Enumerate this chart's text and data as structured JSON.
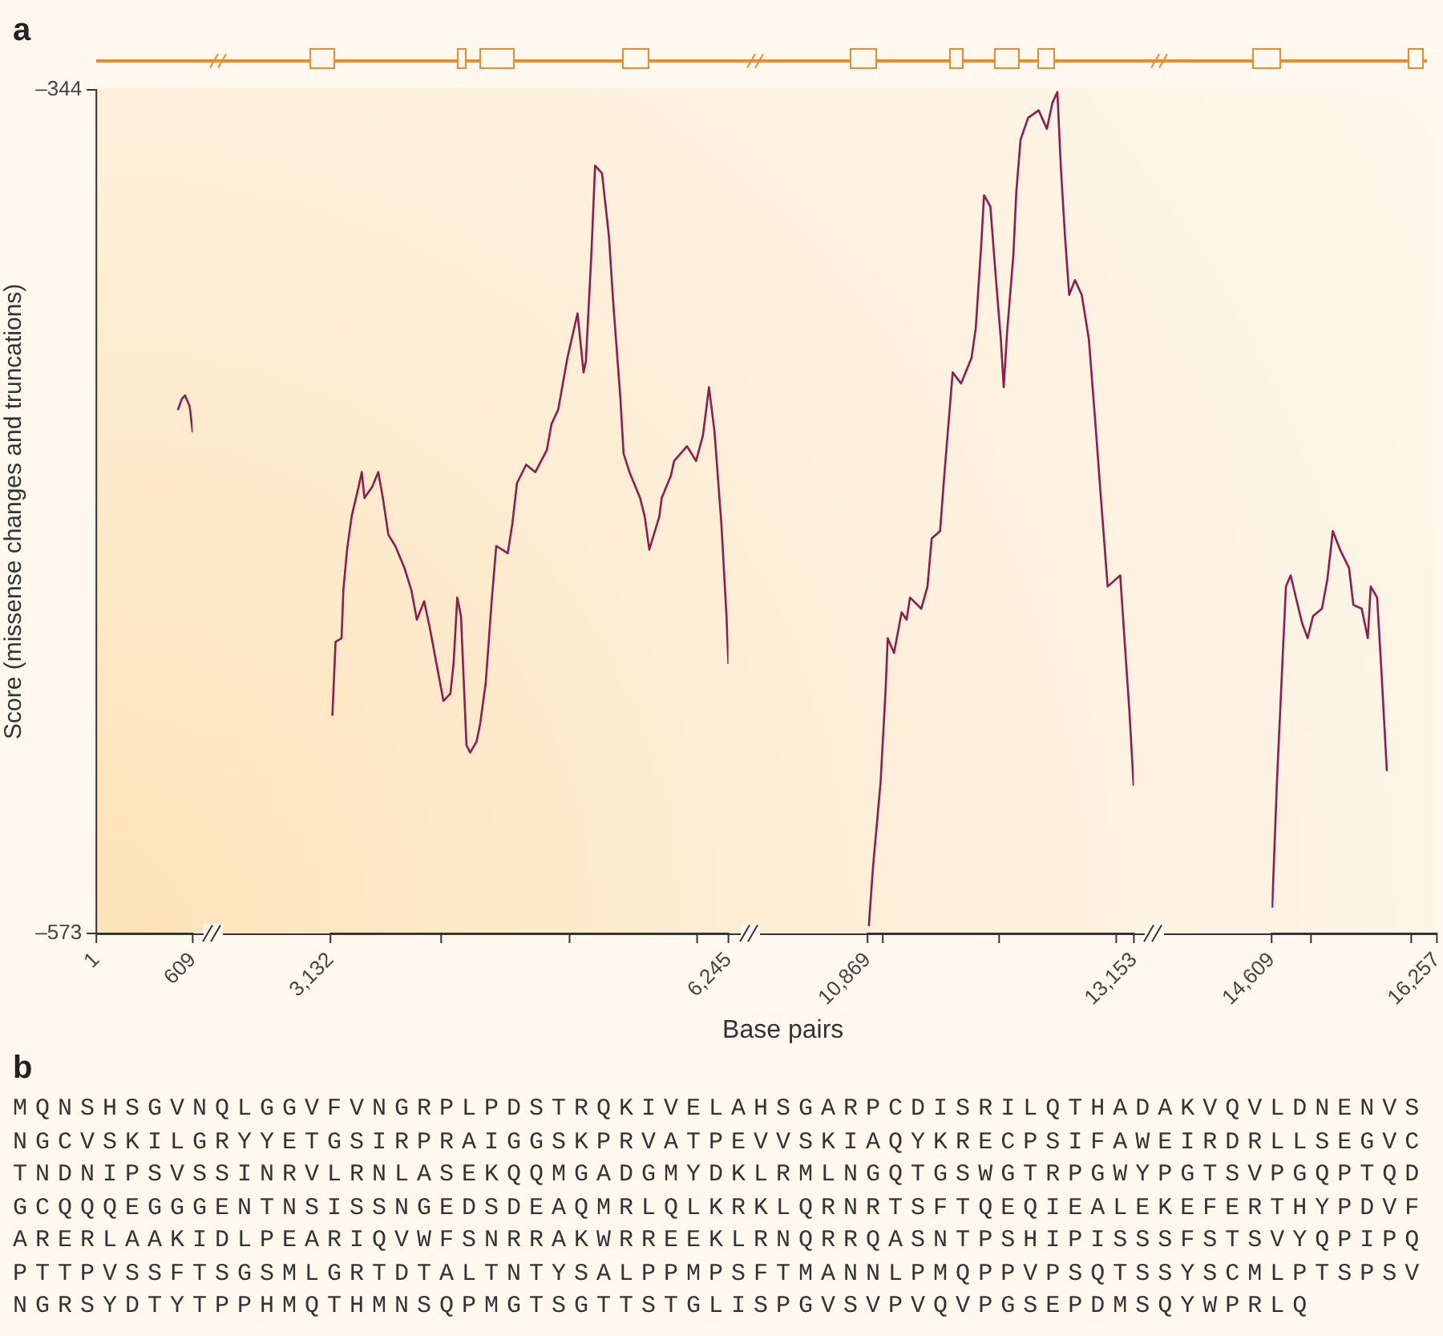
{
  "chart_data": [
    {
      "type": "line",
      "title": "a",
      "ylabel": "Score (missense changes and truncations)",
      "xlim": [
        1,
        609
      ],
      "xticks": [
        1,
        609
      ],
      "ylim": [
        -573,
        -344
      ],
      "yticks": [
        {
          "value": -573,
          "label": "–573"
        },
        {
          "value": -344,
          "label": "–344"
        }
      ],
      "grid": false,
      "legend": false,
      "marker": "none",
      "series": [
        {
          "color": "#8c1d50",
          "x": [
            515,
            540,
            560,
            590,
            609
          ],
          "values": [
            -431,
            -428,
            -427,
            -430,
            -437
          ]
        }
      ]
    },
    {
      "type": "line",
      "xlim": [
        3132,
        6245
      ],
      "xticks": [
        {
          "value": 3132,
          "label": "3,132"
        },
        {
          "value": 4000,
          "label": null
        },
        {
          "value": 5000,
          "label": null
        },
        {
          "value": 6000,
          "label": null
        },
        {
          "value": 6245,
          "label": "6,245"
        }
      ],
      "ylim": [
        -573,
        -344
      ],
      "tick_labels": "x",
      "grid": false,
      "legend": false,
      "marker": "none",
      "series": [
        {
          "color": "#8c1d50",
          "x": [
            3147,
            3172,
            3219,
            3233,
            3262,
            3298,
            3352,
            3377,
            3398,
            3459,
            3506,
            3542,
            3585,
            3639,
            3711,
            3765,
            3808,
            3865,
            3908,
            3962,
            4016,
            4070,
            4095,
            4124,
            4153,
            4196,
            4225,
            4275,
            4304,
            4347,
            4393,
            4429,
            4519,
            4555,
            4591,
            4663,
            4735,
            4825,
            4861,
            4914,
            4986,
            5065,
            5112,
            5130,
            5173,
            5202,
            5256,
            5310,
            5346,
            5400,
            5425,
            5471,
            5554,
            5590,
            5626,
            5705,
            5723,
            5795,
            5820,
            5921,
            5992,
            6046,
            6093,
            6136,
            6190,
            6230,
            6245
          ],
          "values": [
            -514,
            -494,
            -493,
            -480,
            -469,
            -460,
            -452,
            -448,
            -455,
            -452,
            -448,
            -455,
            -465,
            -468,
            -474,
            -480,
            -488,
            -483,
            -490,
            -500,
            -510,
            -508,
            -500,
            -482,
            -487,
            -522,
            -524,
            -521,
            -516,
            -505,
            -483,
            -468,
            -470,
            -462,
            -451,
            -446,
            -448,
            -442,
            -435,
            -431,
            -417,
            -405,
            -421,
            -418,
            -389,
            -365,
            -367,
            -384,
            -403,
            -428,
            -443,
            -448,
            -455,
            -460,
            -469,
            -460,
            -455,
            -449,
            -445,
            -441,
            -445,
            -438,
            -425,
            -437,
            -462,
            -487,
            -500
          ]
        }
      ]
    },
    {
      "type": "line",
      "xlabel": "Base pairs",
      "xlim": [
        10869,
        13153
      ],
      "xticks": [
        {
          "value": 10869,
          "label": "10,869"
        },
        {
          "value": 11000,
          "label": null
        },
        {
          "value": 12000,
          "label": null
        },
        {
          "value": 13000,
          "label": null
        },
        {
          "value": 13153,
          "label": "13,153"
        }
      ],
      "ylim": [
        -573,
        -344
      ],
      "tick_labels": "x",
      "grid": false,
      "legend": false,
      "marker": "none",
      "series": [
        {
          "color": "#8c1d50",
          "x": [
            10880,
            10916,
            10981,
            11024,
            11042,
            11096,
            11114,
            11161,
            11204,
            11233,
            11330,
            11383,
            11419,
            11491,
            11527,
            11581,
            11599,
            11671,
            11761,
            11797,
            11843,
            11868,
            11922,
            11976,
            12012,
            12037,
            12066,
            12120,
            12145,
            12181,
            12246,
            12336,
            12407,
            12454,
            12497,
            12526,
            12562,
            12598,
            12648,
            12706,
            12767,
            12821,
            12875,
            12928,
            13036,
            13072,
            13115,
            13151
          ],
          "values": [
            -571,
            -555,
            -532,
            -507,
            -493,
            -497,
            -494,
            -486,
            -488,
            -482,
            -485,
            -479,
            -466,
            -464,
            -449,
            -428,
            -421,
            -424,
            -417,
            -409,
            -387,
            -373,
            -376,
            -398,
            -412,
            -425,
            -410,
            -389,
            -372,
            -358,
            -352,
            -350,
            -355,
            -348,
            -345,
            -365,
            -384,
            -400,
            -396,
            -400,
            -412,
            -434,
            -457,
            -479,
            -476,
            -493,
            -513,
            -533
          ]
        }
      ]
    },
    {
      "type": "line",
      "xlim": [
        14609,
        16257
      ],
      "xticks": [
        {
          "value": 14609,
          "label": "14,609"
        },
        {
          "value": 15000,
          "label": null
        },
        {
          "value": 16000,
          "label": null
        },
        {
          "value": 16257,
          "label": "16,257"
        }
      ],
      "ylim": [
        -573,
        -344
      ],
      "tick_labels": "x",
      "grid": false,
      "legend": false,
      "marker": "none",
      "series": [
        {
          "color": "#8c1d50",
          "x": [
            14615,
            14662,
            14716,
            14752,
            14799,
            14860,
            14914,
            14968,
            15022,
            15111,
            15165,
            15219,
            15291,
            15381,
            15424,
            15507,
            15568,
            15597,
            15661,
            15704,
            15758
          ],
          "values": [
            -566,
            -532,
            -500,
            -479,
            -476,
            -483,
            -489,
            -493,
            -487,
            -485,
            -477,
            -464,
            -469,
            -474,
            -484,
            -485,
            -493,
            -479,
            -482,
            -502,
            -529
          ]
        }
      ]
    },
    {
      "type": "other",
      "title": "b",
      "annotations": [
        "MQNSHSGVNQLGGVFVNGRPLPDSTRQKIVELAHSGARPCDISRILQTHADAKVQVLDNENVS",
        "NGCVSKILGRYYETGSIRPRAIGGSKPRVATPEVVSKIAQYKRECPSIFAWEIRDRLLSEGVC",
        "TNDNIPSVSSINRVLRNLASEKQQMGADGMYDKLRMLNGQTGSWGTRPGWYPGTSVPGQPTQD",
        "GCQQQEGGGENTNSISSNGEDSDEAQMRLQLKRKLQRNRTSFTQEQIEALEKEFERTHYPDVF",
        "ARERLAAKIDLPEARIQVWFSNRRAKWRREEKLRNQRRQASNTPSHIPISSSFSTSVYQPIPQ",
        "PTTPVSSFTSGSMLGRTDTALTNTYSALPPMPSFTMANNLPMQPPVPSQTSSYSCMLPTSPSV",
        "NGRSYDTYTPPHMQTHMNSQPMGTSGTTSTGLISPGVSVPVQVPGSEPDMSQYWPRLQ"
      ]
    }
  ]
}
